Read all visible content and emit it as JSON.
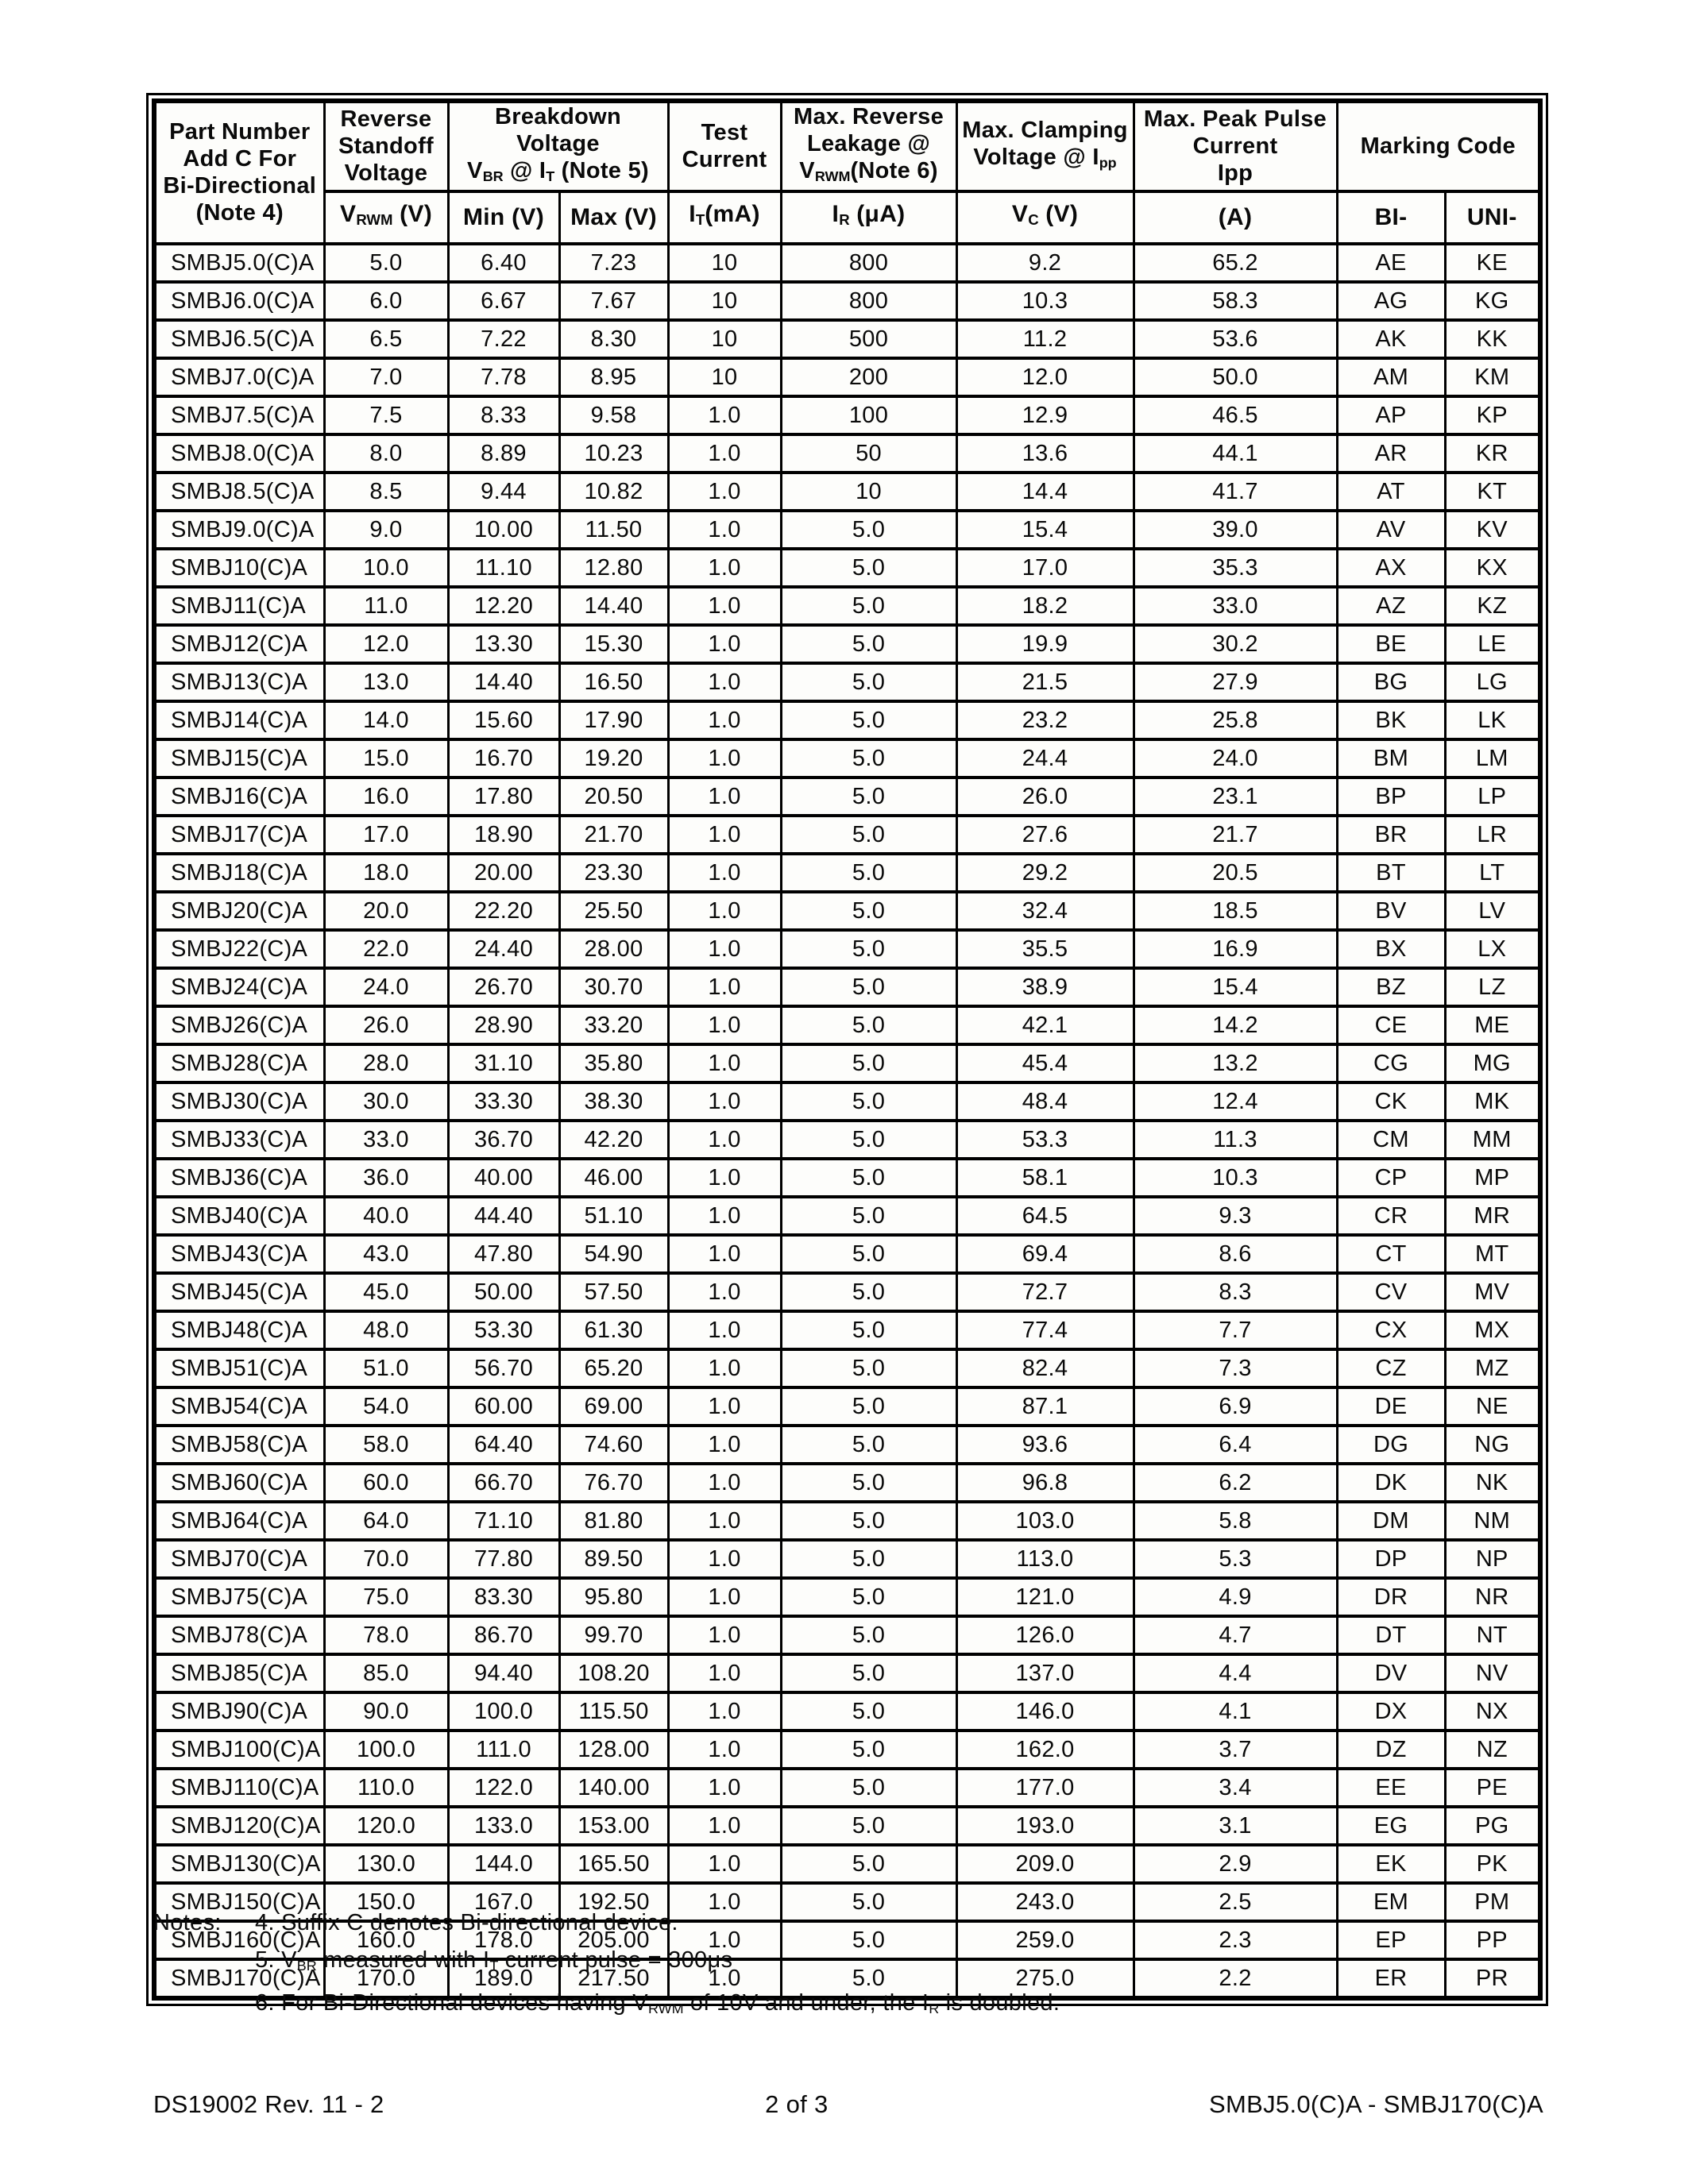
{
  "colors": {
    "ink": "#0a0a0a",
    "paper": "#ffffff",
    "table_fill": "#fdfdfb",
    "border": "#000000"
  },
  "table": {
    "headers": {
      "part_number_lines": [
        "Part Number",
        "Add C For",
        "Bi-Directional",
        "(Note 4)"
      ],
      "reverse_standoff_lines": [
        "Reverse",
        "Standoff",
        "Voltage"
      ],
      "breakdown": {
        "l1": "Breakdown",
        "l2": "Voltage",
        "l3": [
          [
            "V"
          ],
          [
            "BR",
            "sub"
          ],
          [
            " @ I"
          ],
          [
            "T",
            "sub"
          ],
          [
            " (Note 5)"
          ]
        ]
      },
      "test_current_lines": [
        "Test",
        "Current"
      ],
      "max_reverse_leakage": {
        "l1": "Max. Reverse",
        "l2": "Leakage @",
        "l3": [
          [
            "V"
          ],
          [
            "RWM",
            "sub"
          ],
          [
            "(Note 6)"
          ]
        ]
      },
      "max_clamping": {
        "l1": "Max. Clamping",
        "l2": [
          [
            "Voltage @ I"
          ],
          [
            "pp",
            "sub"
          ]
        ]
      },
      "max_peak_pulse_lines": [
        "Max. Peak Pulse",
        "Current",
        "Ipp"
      ],
      "marking_code": "Marking Code",
      "units": {
        "vrwm": [
          [
            "V"
          ],
          [
            "RWM",
            "sub"
          ],
          [
            " (V)"
          ]
        ],
        "min": "Min (V)",
        "max": "Max (V)",
        "it": [
          [
            "I"
          ],
          [
            "T",
            "sub"
          ],
          [
            "(mA)"
          ]
        ],
        "ir": [
          [
            "I"
          ],
          [
            "R",
            "sub"
          ],
          [
            " (μA)"
          ]
        ],
        "vc": [
          [
            "V"
          ],
          [
            "C",
            "sub"
          ],
          [
            " (V)"
          ]
        ],
        "a": "(A)",
        "bi": "BI-",
        "uni": "UNI-"
      }
    },
    "col_keys": [
      "part_number",
      "vrwm_v",
      "vbr_min_v",
      "vbr_max_v",
      "it_ma",
      "ir_ua",
      "vc_v",
      "ipp_a",
      "marking_bi",
      "marking_uni"
    ],
    "rows": [
      [
        "SMBJ5.0(C)A",
        "5.0",
        "6.40",
        "7.23",
        "10",
        "800",
        "9.2",
        "65.2",
        "AE",
        "KE"
      ],
      [
        "SMBJ6.0(C)A",
        "6.0",
        "6.67",
        "7.67",
        "10",
        "800",
        "10.3",
        "58.3",
        "AG",
        "KG"
      ],
      [
        "SMBJ6.5(C)A",
        "6.5",
        "7.22",
        "8.30",
        "10",
        "500",
        "11.2",
        "53.6",
        "AK",
        "KK"
      ],
      [
        "SMBJ7.0(C)A",
        "7.0",
        "7.78",
        "8.95",
        "10",
        "200",
        "12.0",
        "50.0",
        "AM",
        "KM"
      ],
      [
        "SMBJ7.5(C)A",
        "7.5",
        "8.33",
        "9.58",
        "1.0",
        "100",
        "12.9",
        "46.5",
        "AP",
        "KP"
      ],
      [
        "SMBJ8.0(C)A",
        "8.0",
        "8.89",
        "10.23",
        "1.0",
        "50",
        "13.6",
        "44.1",
        "AR",
        "KR"
      ],
      [
        "SMBJ8.5(C)A",
        "8.5",
        "9.44",
        "10.82",
        "1.0",
        "10",
        "14.4",
        "41.7",
        "AT",
        "KT"
      ],
      [
        "SMBJ9.0(C)A",
        "9.0",
        "10.00",
        "11.50",
        "1.0",
        "5.0",
        "15.4",
        "39.0",
        "AV",
        "KV"
      ],
      [
        "SMBJ10(C)A",
        "10.0",
        "11.10",
        "12.80",
        "1.0",
        "5.0",
        "17.0",
        "35.3",
        "AX",
        "KX"
      ],
      [
        "SMBJ11(C)A",
        "11.0",
        "12.20",
        "14.40",
        "1.0",
        "5.0",
        "18.2",
        "33.0",
        "AZ",
        "KZ"
      ],
      [
        "SMBJ12(C)A",
        "12.0",
        "13.30",
        "15.30",
        "1.0",
        "5.0",
        "19.9",
        "30.2",
        "BE",
        "LE"
      ],
      [
        "SMBJ13(C)A",
        "13.0",
        "14.40",
        "16.50",
        "1.0",
        "5.0",
        "21.5",
        "27.9",
        "BG",
        "LG"
      ],
      [
        "SMBJ14(C)A",
        "14.0",
        "15.60",
        "17.90",
        "1.0",
        "5.0",
        "23.2",
        "25.8",
        "BK",
        "LK"
      ],
      [
        "SMBJ15(C)A",
        "15.0",
        "16.70",
        "19.20",
        "1.0",
        "5.0",
        "24.4",
        "24.0",
        "BM",
        "LM"
      ],
      [
        "SMBJ16(C)A",
        "16.0",
        "17.80",
        "20.50",
        "1.0",
        "5.0",
        "26.0",
        "23.1",
        "BP",
        "LP"
      ],
      [
        "SMBJ17(C)A",
        "17.0",
        "18.90",
        "21.70",
        "1.0",
        "5.0",
        "27.6",
        "21.7",
        "BR",
        "LR"
      ],
      [
        "SMBJ18(C)A",
        "18.0",
        "20.00",
        "23.30",
        "1.0",
        "5.0",
        "29.2",
        "20.5",
        "BT",
        "LT"
      ],
      [
        "SMBJ20(C)A",
        "20.0",
        "22.20",
        "25.50",
        "1.0",
        "5.0",
        "32.4",
        "18.5",
        "BV",
        "LV"
      ],
      [
        "SMBJ22(C)A",
        "22.0",
        "24.40",
        "28.00",
        "1.0",
        "5.0",
        "35.5",
        "16.9",
        "BX",
        "LX"
      ],
      [
        "SMBJ24(C)A",
        "24.0",
        "26.70",
        "30.70",
        "1.0",
        "5.0",
        "38.9",
        "15.4",
        "BZ",
        "LZ"
      ],
      [
        "SMBJ26(C)A",
        "26.0",
        "28.90",
        "33.20",
        "1.0",
        "5.0",
        "42.1",
        "14.2",
        "CE",
        "ME"
      ],
      [
        "SMBJ28(C)A",
        "28.0",
        "31.10",
        "35.80",
        "1.0",
        "5.0",
        "45.4",
        "13.2",
        "CG",
        "MG"
      ],
      [
        "SMBJ30(C)A",
        "30.0",
        "33.30",
        "38.30",
        "1.0",
        "5.0",
        "48.4",
        "12.4",
        "CK",
        "MK"
      ],
      [
        "SMBJ33(C)A",
        "33.0",
        "36.70",
        "42.20",
        "1.0",
        "5.0",
        "53.3",
        "11.3",
        "CM",
        "MM"
      ],
      [
        "SMBJ36(C)A",
        "36.0",
        "40.00",
        "46.00",
        "1.0",
        "5.0",
        "58.1",
        "10.3",
        "CP",
        "MP"
      ],
      [
        "SMBJ40(C)A",
        "40.0",
        "44.40",
        "51.10",
        "1.0",
        "5.0",
        "64.5",
        "9.3",
        "CR",
        "MR"
      ],
      [
        "SMBJ43(C)A",
        "43.0",
        "47.80",
        "54.90",
        "1.0",
        "5.0",
        "69.4",
        "8.6",
        "CT",
        "MT"
      ],
      [
        "SMBJ45(C)A",
        "45.0",
        "50.00",
        "57.50",
        "1.0",
        "5.0",
        "72.7",
        "8.3",
        "CV",
        "MV"
      ],
      [
        "SMBJ48(C)A",
        "48.0",
        "53.30",
        "61.30",
        "1.0",
        "5.0",
        "77.4",
        "7.7",
        "CX",
        "MX"
      ],
      [
        "SMBJ51(C)A",
        "51.0",
        "56.70",
        "65.20",
        "1.0",
        "5.0",
        "82.4",
        "7.3",
        "CZ",
        "MZ"
      ],
      [
        "SMBJ54(C)A",
        "54.0",
        "60.00",
        "69.00",
        "1.0",
        "5.0",
        "87.1",
        "6.9",
        "DE",
        "NE"
      ],
      [
        "SMBJ58(C)A",
        "58.0",
        "64.40",
        "74.60",
        "1.0",
        "5.0",
        "93.6",
        "6.4",
        "DG",
        "NG"
      ],
      [
        "SMBJ60(C)A",
        "60.0",
        "66.70",
        "76.70",
        "1.0",
        "5.0",
        "96.8",
        "6.2",
        "DK",
        "NK"
      ],
      [
        "SMBJ64(C)A",
        "64.0",
        "71.10",
        "81.80",
        "1.0",
        "5.0",
        "103.0",
        "5.8",
        "DM",
        "NM"
      ],
      [
        "SMBJ70(C)A",
        "70.0",
        "77.80",
        "89.50",
        "1.0",
        "5.0",
        "113.0",
        "5.3",
        "DP",
        "NP"
      ],
      [
        "SMBJ75(C)A",
        "75.0",
        "83.30",
        "95.80",
        "1.0",
        "5.0",
        "121.0",
        "4.9",
        "DR",
        "NR"
      ],
      [
        "SMBJ78(C)A",
        "78.0",
        "86.70",
        "99.70",
        "1.0",
        "5.0",
        "126.0",
        "4.7",
        "DT",
        "NT"
      ],
      [
        "SMBJ85(C)A",
        "85.0",
        "94.40",
        "108.20",
        "1.0",
        "5.0",
        "137.0",
        "4.4",
        "DV",
        "NV"
      ],
      [
        "SMBJ90(C)A",
        "90.0",
        "100.0",
        "115.50",
        "1.0",
        "5.0",
        "146.0",
        "4.1",
        "DX",
        "NX"
      ],
      [
        "SMBJ100(C)A",
        "100.0",
        "111.0",
        "128.00",
        "1.0",
        "5.0",
        "162.0",
        "3.7",
        "DZ",
        "NZ"
      ],
      [
        "SMBJ110(C)A",
        "110.0",
        "122.0",
        "140.00",
        "1.0",
        "5.0",
        "177.0",
        "3.4",
        "EE",
        "PE"
      ],
      [
        "SMBJ120(C)A",
        "120.0",
        "133.0",
        "153.00",
        "1.0",
        "5.0",
        "193.0",
        "3.1",
        "EG",
        "PG"
      ],
      [
        "SMBJ130(C)A",
        "130.0",
        "144.0",
        "165.50",
        "1.0",
        "5.0",
        "209.0",
        "2.9",
        "EK",
        "PK"
      ],
      [
        "SMBJ150(C)A",
        "150.0",
        "167.0",
        "192.50",
        "1.0",
        "5.0",
        "243.0",
        "2.5",
        "EM",
        "PM"
      ],
      [
        "SMBJ160(C)A",
        "160.0",
        "178.0",
        "205.00",
        "1.0",
        "5.0",
        "259.0",
        "2.3",
        "EP",
        "PP"
      ],
      [
        "SMBJ170(C)A",
        "170.0",
        "189.0",
        "217.50",
        "1.0",
        "5.0",
        "275.0",
        "2.2",
        "ER",
        "PR"
      ]
    ]
  },
  "notes": {
    "label": "Notes:",
    "items": [
      [
        [
          "4. Suffix C denotes Bi-directional device."
        ]
      ],
      [
        [
          "5. V"
        ],
        [
          "BR",
          "sub"
        ],
        [
          " measured with I"
        ],
        [
          "T",
          "sub"
        ],
        [
          " current pulse = 300μs"
        ]
      ],
      [
        [
          "6. For Bi-Directional devices having V"
        ],
        [
          "RWM",
          "sub"
        ],
        [
          " of 10V and under, the I"
        ],
        [
          "R",
          "sub"
        ],
        [
          " is doubled."
        ]
      ]
    ]
  },
  "footer": {
    "doc_id": "DS19002 Rev. 11 - 2",
    "page": "2 of 3",
    "part_range": "SMBJ5.0(C)A - SMBJ170(C)A"
  }
}
